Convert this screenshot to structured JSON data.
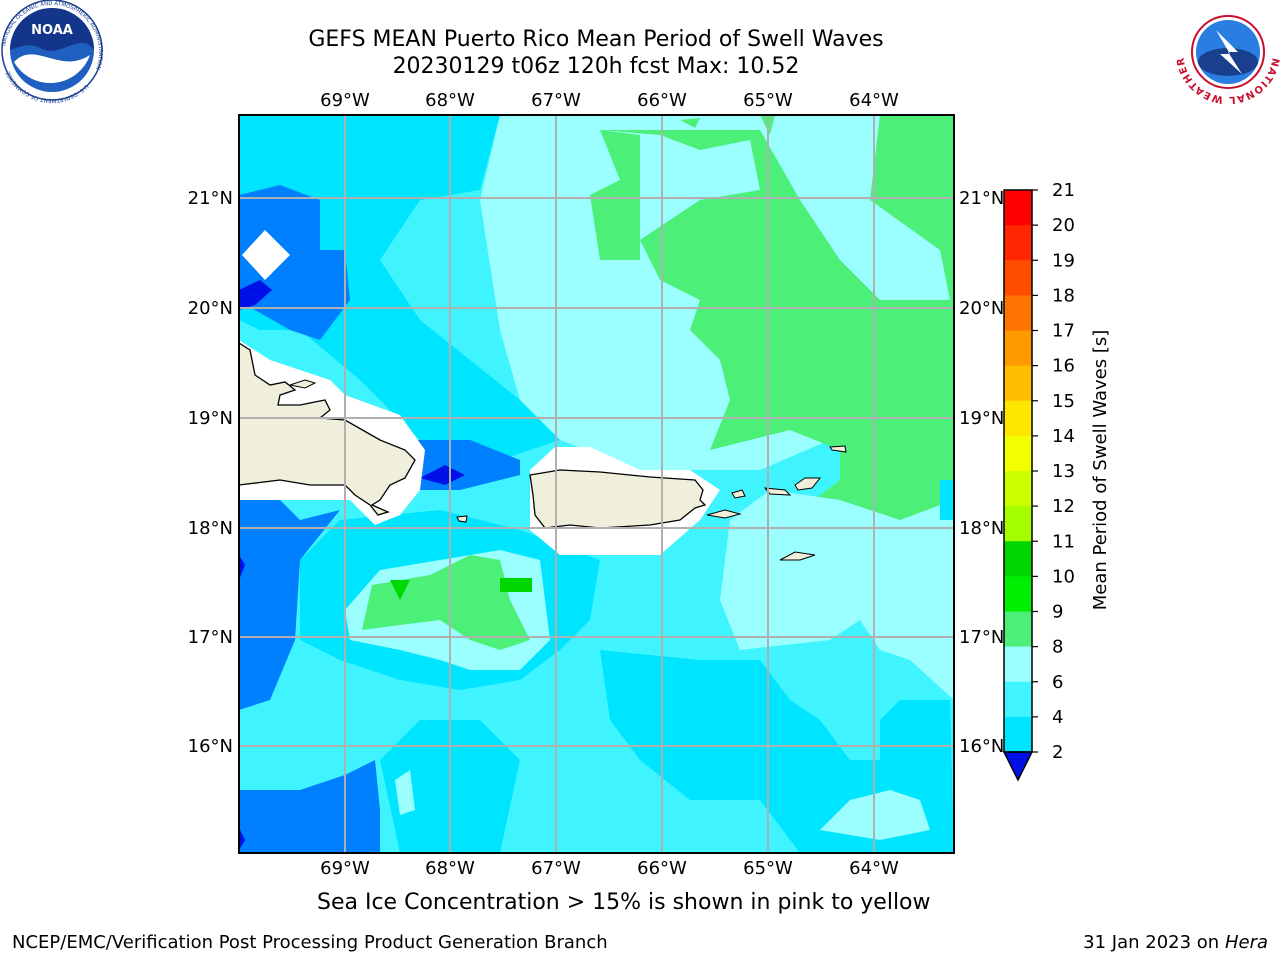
{
  "title": {
    "line1": "GEFS MEAN Puerto Rico Mean Period of Swell Waves",
    "line2": "20230129 t06z 120h fcst   Max: 10.52"
  },
  "map": {
    "lon_labels": [
      "69°W",
      "68°W",
      "67°W",
      "66°W",
      "65°W",
      "64°W"
    ],
    "lat_labels": [
      "21°N",
      "20°N",
      "19°N",
      "18°N",
      "17°N",
      "16°N"
    ],
    "colors": {
      "c2_4": "#0080ff",
      "c4_6": "#00e5ff",
      "c6_8": "#40f4ff",
      "c8_9": "#9bffff",
      "c9_10": "#4cef78",
      "c10_11": "#00d600",
      "land": "#efefdc",
      "dark_blue": "#0010e8"
    }
  },
  "colorbar": {
    "label": "Mean Period of Swell Waves [s]",
    "ticks": [
      "21",
      "20",
      "19",
      "18",
      "17",
      "16",
      "15",
      "14",
      "13",
      "12",
      "11",
      "10",
      "9",
      "8",
      "6",
      "4",
      "2"
    ],
    "colors": [
      "#ff0000",
      "#ff2600",
      "#ff4d00",
      "#ff7300",
      "#ff9900",
      "#ffbf00",
      "#ffe600",
      "#f2ff00",
      "#ccff00",
      "#a6ff00",
      "#00d600",
      "#00ee00",
      "#4cef78",
      "#9bffff",
      "#40f4ff",
      "#00e5ff",
      "#0080ff",
      "#0010e8"
    ]
  },
  "note": "Sea Ice Concentration > 15% is shown in pink to yellow",
  "footer": {
    "left": "NCEP/EMC/Verification Post Processing Product Generation Branch",
    "right_prefix": "31 Jan 2023 on ",
    "right_italic": "Hera"
  },
  "logos": {
    "noaa": "NOAA",
    "noaa_ring": "NATIONAL OCEANIC AND ATMOSPHERIC ADMINISTRATION",
    "noaa_bottom": "U.S. DEPARTMENT OF COMMERCE",
    "nws_ring": "NATIONAL WEATHER SERVICE"
  }
}
